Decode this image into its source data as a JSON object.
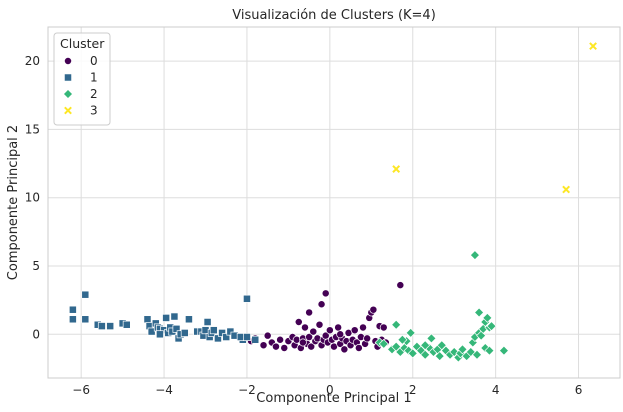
{
  "chart_data": {
    "type": "scatter",
    "title": "Visualización de Clusters (K=4)",
    "xlabel": "Componente Principal 1",
    "ylabel": "Componente Principal 2",
    "xlim": [
      -6.8,
      7.0
    ],
    "ylim": [
      -3.2,
      22.5
    ],
    "xticks": [
      -6,
      -4,
      -2,
      0,
      2,
      4,
      6
    ],
    "yticks": [
      0,
      5,
      10,
      15,
      20
    ],
    "grid": true,
    "legend": {
      "title": "Cluster",
      "placement": "top-left"
    },
    "series": [
      {
        "name": "0",
        "color": "#440154",
        "marker": "circle",
        "points": [
          [
            -2.2,
            -0.2
          ],
          [
            -1.9,
            -0.5
          ],
          [
            -1.8,
            -0.3
          ],
          [
            -1.6,
            -0.8
          ],
          [
            -1.5,
            -0.1
          ],
          [
            -1.4,
            -0.6
          ],
          [
            -1.3,
            -0.9
          ],
          [
            -1.2,
            -0.4
          ],
          [
            -1.1,
            -1.0
          ],
          [
            -1.0,
            -0.5
          ],
          [
            -0.9,
            -0.2
          ],
          [
            -0.85,
            -0.8
          ],
          [
            -0.8,
            -0.4
          ],
          [
            -0.75,
            0.9
          ],
          [
            -0.7,
            -1.0
          ],
          [
            -0.65,
            -0.3
          ],
          [
            -0.6,
            0.5
          ],
          [
            -0.55,
            -0.7
          ],
          [
            -0.5,
            -0.2
          ],
          [
            -0.45,
            -0.9
          ],
          [
            -0.4,
            0.2
          ],
          [
            -0.35,
            -0.5
          ],
          [
            -0.5,
            1.6
          ],
          [
            -0.3,
            -0.3
          ],
          [
            -0.25,
            0.7
          ],
          [
            -0.2,
            -0.8
          ],
          [
            -0.15,
            -0.4
          ],
          [
            -0.1,
            -0.1
          ],
          [
            -0.2,
            2.2
          ],
          [
            -0.05,
            -0.6
          ],
          [
            0.0,
            0.3
          ],
          [
            0.05,
            -0.4
          ],
          [
            0.1,
            -0.9
          ],
          [
            0.15,
            -0.2
          ],
          [
            0.2,
            0.5
          ],
          [
            0.25,
            -0.7
          ],
          [
            0.3,
            -0.3
          ],
          [
            0.35,
            -1.1
          ],
          [
            0.4,
            -0.5
          ],
          [
            0.45,
            0.1
          ],
          [
            0.5,
            -0.8
          ],
          [
            0.55,
            -0.4
          ],
          [
            0.6,
            0.3
          ],
          [
            0.65,
            -0.6
          ],
          [
            0.7,
            -1.0
          ],
          [
            0.75,
            -0.2
          ],
          [
            0.8,
            0.5
          ],
          [
            0.85,
            -0.7
          ],
          [
            0.9,
            -0.3
          ],
          [
            0.95,
            1.2
          ],
          [
            1.0,
            1.6
          ],
          [
            1.05,
            1.8
          ],
          [
            1.1,
            -0.5
          ],
          [
            1.15,
            -0.9
          ],
          [
            1.2,
            0.6
          ],
          [
            1.25,
            -0.4
          ],
          [
            1.3,
            0.5
          ],
          [
            1.35,
            -0.6
          ],
          [
            -0.1,
            3.0
          ],
          [
            1.7,
            3.6
          ],
          [
            0.25,
            0.0
          ],
          [
            -0.65,
            -0.6
          ]
        ]
      },
      {
        "name": "1",
        "color": "#31688e",
        "marker": "square",
        "points": [
          [
            -6.2,
            1.8
          ],
          [
            -6.2,
            1.1
          ],
          [
            -5.9,
            2.9
          ],
          [
            -5.9,
            1.1
          ],
          [
            -5.6,
            0.7
          ],
          [
            -5.5,
            0.6
          ],
          [
            -5.3,
            0.6
          ],
          [
            -5.0,
            0.8
          ],
          [
            -4.9,
            0.7
          ],
          [
            -4.4,
            1.1
          ],
          [
            -4.35,
            0.6
          ],
          [
            -4.3,
            0.2
          ],
          [
            -4.2,
            0.8
          ],
          [
            -4.15,
            0.5
          ],
          [
            -4.1,
            0.4
          ],
          [
            -4.0,
            0.3
          ],
          [
            -3.95,
            1.2
          ],
          [
            -3.9,
            0.1
          ],
          [
            -3.85,
            0.5
          ],
          [
            -3.8,
            0.2
          ],
          [
            -3.75,
            1.3
          ],
          [
            -3.7,
            0.4
          ],
          [
            -3.65,
            -0.3
          ],
          [
            -3.6,
            0.0
          ],
          [
            -3.4,
            1.1
          ],
          [
            -3.2,
            0.2
          ],
          [
            -3.1,
            0.2
          ],
          [
            -3.05,
            -0.1
          ],
          [
            -3.0,
            0.3
          ],
          [
            -2.95,
            0.9
          ],
          [
            -2.9,
            -0.2
          ],
          [
            -2.85,
            0.1
          ],
          [
            -2.8,
            0.3
          ],
          [
            -2.7,
            -0.3
          ],
          [
            -2.6,
            0.1
          ],
          [
            -2.5,
            -0.2
          ],
          [
            -2.4,
            0.2
          ],
          [
            -2.3,
            -0.1
          ],
          [
            -2.1,
            -0.4
          ],
          [
            -2.0,
            2.6
          ],
          [
            -1.8,
            -0.4
          ],
          [
            -2.15,
            -0.2
          ],
          [
            -2.0,
            -0.2
          ],
          [
            -4.1,
            0.0
          ],
          [
            -3.5,
            0.1
          ]
        ]
      },
      {
        "name": "2",
        "color": "#35b779",
        "marker": "diamond",
        "points": [
          [
            1.2,
            -0.6
          ],
          [
            1.3,
            -0.7
          ],
          [
            1.5,
            -1.1
          ],
          [
            1.6,
            -0.9
          ],
          [
            1.6,
            0.7
          ],
          [
            1.7,
            -1.3
          ],
          [
            1.8,
            -1.0
          ],
          [
            1.85,
            -0.5
          ],
          [
            1.9,
            -1.2
          ],
          [
            1.95,
            0.1
          ],
          [
            2.0,
            -1.4
          ],
          [
            2.1,
            -0.9
          ],
          [
            2.2,
            -1.2
          ],
          [
            2.3,
            -1.5
          ],
          [
            2.4,
            -1.0
          ],
          [
            2.45,
            -0.3
          ],
          [
            2.5,
            -1.3
          ],
          [
            2.6,
            -1.1
          ],
          [
            2.65,
            -1.6
          ],
          [
            2.7,
            -0.8
          ],
          [
            2.8,
            -1.2
          ],
          [
            2.9,
            -1.5
          ],
          [
            3.0,
            -1.3
          ],
          [
            3.1,
            -1.7
          ],
          [
            3.15,
            -1.4
          ],
          [
            3.2,
            -1.1
          ],
          [
            3.3,
            -1.6
          ],
          [
            3.4,
            -1.3
          ],
          [
            3.45,
            -0.6
          ],
          [
            3.5,
            5.8
          ],
          [
            3.5,
            -0.2
          ],
          [
            3.55,
            -1.5
          ],
          [
            3.6,
            0.1
          ],
          [
            3.6,
            1.6
          ],
          [
            3.65,
            -0.1
          ],
          [
            3.7,
            0.4
          ],
          [
            3.75,
            -1.0
          ],
          [
            3.75,
            0.9
          ],
          [
            3.8,
            1.2
          ],
          [
            3.85,
            0.5
          ],
          [
            3.85,
            -1.2
          ],
          [
            3.9,
            0.6
          ],
          [
            4.2,
            -1.2
          ],
          [
            2.3,
            -0.8
          ],
          [
            1.75,
            -0.4
          ]
        ]
      },
      {
        "name": "3",
        "color": "#fde725",
        "marker": "x",
        "points": [
          [
            1.6,
            12.1
          ],
          [
            5.7,
            10.6
          ],
          [
            6.35,
            21.1
          ]
        ]
      }
    ]
  }
}
